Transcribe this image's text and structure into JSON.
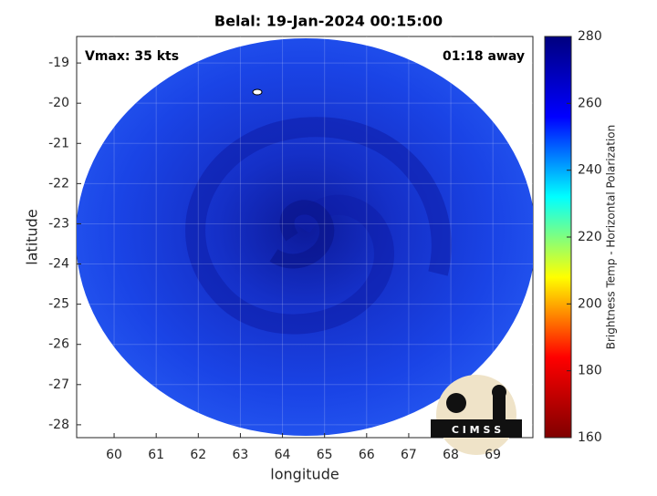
{
  "chart_data": {
    "type": "satellite-map",
    "title": "Belal: 19-Jan-2024 00:15:00",
    "annotations": [
      "Vmax: 35 kts",
      "01:18 away"
    ],
    "x_label": "longitude",
    "y_label": "latitude",
    "xlim": [
      59.11,
      69.95
    ],
    "xticks": [
      60,
      61,
      62,
      63,
      64,
      65,
      66,
      67,
      68,
      69
    ],
    "ylim": [
      -28.32,
      -18.34
    ],
    "yticks": [
      -28,
      -27,
      -26,
      -25,
      -24,
      -23,
      -22,
      -21,
      -20,
      -19
    ],
    "grid": true,
    "colorbar": {
      "label": "Brightness Temp - Horizontal Polarization",
      "lim": [
        160,
        280
      ],
      "ticks": [
        160,
        180,
        200,
        220,
        240,
        260,
        280
      ],
      "colors": [
        "#7f0000",
        "#ff0000",
        "#ffff00",
        "#00ffff",
        "#0000ff",
        "#00007f"
      ]
    },
    "logo_text": "C I M S S"
  }
}
